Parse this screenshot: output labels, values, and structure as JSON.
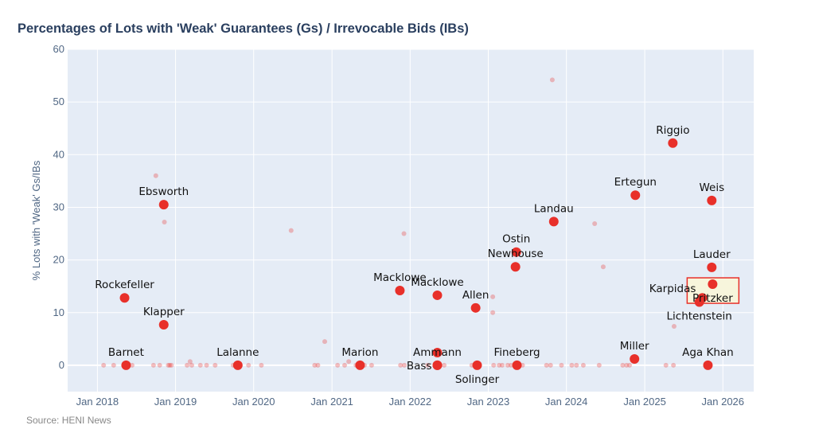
{
  "chart_data": {
    "type": "scatter",
    "title": "Percentages of Lots with 'Weak' Guarantees (Gs) / Irrevocable Bids (IBs)",
    "xlabel": "",
    "ylabel": "% Lots with 'Weak' Gs/IBs",
    "source": "Source: HENI News",
    "xlim": [
      "2017-08-15",
      "2026-05-25"
    ],
    "ylim": [
      -5,
      60
    ],
    "y_ticks": [
      0,
      10,
      20,
      30,
      40,
      50,
      60
    ],
    "x_ticks": [
      {
        "date": "2018-01-01",
        "label": "Jan 2018"
      },
      {
        "date": "2019-01-01",
        "label": "Jan 2019"
      },
      {
        "date": "2020-01-01",
        "label": "Jan 2020"
      },
      {
        "date": "2021-01-01",
        "label": "Jan 2021"
      },
      {
        "date": "2022-01-01",
        "label": "Jan 2022"
      },
      {
        "date": "2023-01-01",
        "label": "Jan 2023"
      },
      {
        "date": "2024-01-01",
        "label": "Jan 2024"
      },
      {
        "date": "2025-01-01",
        "label": "Jan 2025"
      },
      {
        "date": "2026-01-01",
        "label": "Jan 2026"
      }
    ],
    "grid": true,
    "colors": {
      "marker": "#e8302a",
      "marker_faint": "#e8302a",
      "plot_bg": "#e5ecf6",
      "highlight_fill": "#f7f5dc",
      "highlight_border": "#e8302a"
    },
    "labeled_collections": [
      {
        "name": "Rockefeller",
        "date": "2018-05-08",
        "value": 12.8,
        "label_pos": "top"
      },
      {
        "name": "Barnet",
        "date": "2018-05-15",
        "value": 0,
        "label_pos": "top"
      },
      {
        "name": "Ebsworth",
        "date": "2018-11-07",
        "value": 30.5,
        "label_pos": "top"
      },
      {
        "name": "Klapper",
        "date": "2018-11-07",
        "value": 7.7,
        "label_pos": "top"
      },
      {
        "name": "Lalanne",
        "date": "2019-10-19",
        "value": 0,
        "label_pos": "top"
      },
      {
        "name": "Marion",
        "date": "2021-05-12",
        "value": 0,
        "label_pos": "top"
      },
      {
        "name": "Macklowe",
        "date": "2021-11-14",
        "value": 14.2,
        "label_pos": "top"
      },
      {
        "name": "Macklowe",
        "date": "2022-05-08",
        "value": 13.3,
        "label_pos": "top"
      },
      {
        "name": "Ammann",
        "date": "2022-05-08",
        "value": 0,
        "label_pos": "top"
      },
      {
        "name": "Bass",
        "date": "2022-05-08",
        "value": 0,
        "label_pos": "left"
      },
      {
        "name": "Solinger",
        "date": "2022-11-10",
        "value": 0,
        "label_pos": "bottom"
      },
      {
        "name": "Allen",
        "date": "2022-11-03",
        "value": 10.9,
        "label_pos": "top"
      },
      {
        "name": "Ostin",
        "date": "2023-05-12",
        "value": 21.5,
        "label_pos": "top"
      },
      {
        "name": "Newhouse",
        "date": "2023-05-08",
        "value": 18.7,
        "label_pos": "top"
      },
      {
        "name": "Fineberg",
        "date": "2023-05-15",
        "value": 0,
        "label_pos": "top"
      },
      {
        "name": "Landau",
        "date": "2023-11-03",
        "value": 27.3,
        "label_pos": "top"
      },
      {
        "name": "Ertegun",
        "date": "2024-11-18",
        "value": 32.3,
        "label_pos": "top"
      },
      {
        "name": "Miller",
        "date": "2024-11-14",
        "value": 1.2,
        "label_pos": "top"
      },
      {
        "name": "Riggio",
        "date": "2025-05-12",
        "value": 42.2,
        "label_pos": "top"
      },
      {
        "name": "Weis",
        "date": "2025-11-10",
        "value": 31.3,
        "label_pos": "top"
      },
      {
        "name": "Lauder",
        "date": "2025-11-10",
        "value": 18.6,
        "label_pos": "top"
      },
      {
        "name": "Pritzker",
        "date": "2025-11-14",
        "value": 15.4,
        "label_pos": "bottom",
        "highlighted": true
      },
      {
        "name": "Karpidas",
        "date": "2025-09-27",
        "value": 12.8,
        "label_pos": "top-left"
      },
      {
        "name": "Lichtenstein",
        "date": "2025-09-13",
        "value": 12.0,
        "label_pos": "bottom"
      },
      {
        "name": "Aga Khan",
        "date": "2025-10-23",
        "value": 0,
        "label_pos": "top"
      }
    ],
    "unlabeled_major": [
      {
        "date": "2022-05-08",
        "value": 2.4
      }
    ],
    "other_sales": [
      {
        "date": "2018-10-01",
        "value": 36.0
      },
      {
        "date": "2018-11-10",
        "value": 27.2
      },
      {
        "date": "2020-06-24",
        "value": 25.6
      },
      {
        "date": "2020-11-28",
        "value": 4.5
      },
      {
        "date": "2021-12-03",
        "value": 25.0
      },
      {
        "date": "2023-01-22",
        "value": 13.0
      },
      {
        "date": "2023-01-22",
        "value": 10.0
      },
      {
        "date": "2023-10-27",
        "value": 54.2
      },
      {
        "date": "2024-05-12",
        "value": 26.9
      },
      {
        "date": "2024-06-21",
        "value": 18.7
      },
      {
        "date": "2025-05-18",
        "value": 7.4
      },
      {
        "date": "2019-03-10",
        "value": 0.7
      },
      {
        "date": "2021-03-20",
        "value": 0.7
      },
      {
        "date": "2018-01-30",
        "value": 0
      },
      {
        "date": "2018-03-18",
        "value": 0
      },
      {
        "date": "2018-06-12",
        "value": 0
      },
      {
        "date": "2018-09-20",
        "value": 0
      },
      {
        "date": "2018-10-19",
        "value": 0
      },
      {
        "date": "2018-11-28",
        "value": 0
      },
      {
        "date": "2018-12-05",
        "value": 0
      },
      {
        "date": "2018-12-13",
        "value": 0
      },
      {
        "date": "2019-02-24",
        "value": 0
      },
      {
        "date": "2019-03-18",
        "value": 0
      },
      {
        "date": "2019-04-27",
        "value": 0
      },
      {
        "date": "2019-05-26",
        "value": 0
      },
      {
        "date": "2019-07-05",
        "value": 0
      },
      {
        "date": "2019-09-27",
        "value": 0
      },
      {
        "date": "2019-12-08",
        "value": 0
      },
      {
        "date": "2020-02-06",
        "value": 0
      },
      {
        "date": "2020-10-12",
        "value": 0
      },
      {
        "date": "2020-10-27",
        "value": 0
      },
      {
        "date": "2021-01-27",
        "value": 0
      },
      {
        "date": "2021-03-01",
        "value": 0
      },
      {
        "date": "2021-04-23",
        "value": 0
      },
      {
        "date": "2021-06-02",
        "value": 0
      },
      {
        "date": "2021-07-05",
        "value": 0
      },
      {
        "date": "2021-11-17",
        "value": 0
      },
      {
        "date": "2021-12-05",
        "value": 0
      },
      {
        "date": "2022-03-24",
        "value": 0
      },
      {
        "date": "2022-06-09",
        "value": 0
      },
      {
        "date": "2022-10-16",
        "value": 0
      },
      {
        "date": "2023-01-26",
        "value": 0
      },
      {
        "date": "2023-02-21",
        "value": 0
      },
      {
        "date": "2023-03-07",
        "value": 0
      },
      {
        "date": "2023-04-02",
        "value": 0
      },
      {
        "date": "2023-04-17",
        "value": 0
      },
      {
        "date": "2023-06-10",
        "value": 0
      },
      {
        "date": "2023-09-30",
        "value": 0
      },
      {
        "date": "2023-10-19",
        "value": 0
      },
      {
        "date": "2023-12-09",
        "value": 0
      },
      {
        "date": "2024-01-26",
        "value": 0
      },
      {
        "date": "2024-02-17",
        "value": 0
      },
      {
        "date": "2024-03-20",
        "value": 0
      },
      {
        "date": "2024-06-02",
        "value": 0
      },
      {
        "date": "2024-09-20",
        "value": 0
      },
      {
        "date": "2024-10-08",
        "value": 0
      },
      {
        "date": "2024-10-22",
        "value": 0
      },
      {
        "date": "2025-04-10",
        "value": 0
      },
      {
        "date": "2025-05-15",
        "value": 0
      }
    ]
  }
}
